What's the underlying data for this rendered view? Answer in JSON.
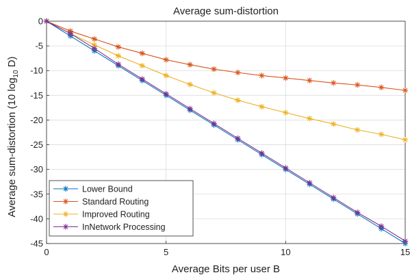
{
  "chart_data": {
    "type": "line",
    "title": "Average sum-distortion",
    "xlabel": "Average Bits per user B",
    "ylabel_main": "Average sum-distortion (10 log",
    "ylabel_sub": "10",
    "ylabel_tail": " D)",
    "xlim": [
      0,
      15
    ],
    "ylim": [
      -45,
      0
    ],
    "xticks": [
      0,
      5,
      10,
      15
    ],
    "yticks": [
      0,
      -5,
      -10,
      -15,
      -20,
      -25,
      -30,
      -35,
      -40,
      -45
    ],
    "grid": true,
    "legend_position": "bottom-left",
    "x": [
      0,
      1,
      2,
      3,
      4,
      5,
      6,
      7,
      8,
      9,
      10,
      11,
      12,
      13,
      14,
      15
    ],
    "series": [
      {
        "name": "Lower Bound",
        "color": "#0072BD",
        "marker": "asterisk",
        "values": [
          0,
          -3,
          -6,
          -9,
          -12,
          -15,
          -18,
          -21,
          -24,
          -27,
          -30,
          -33,
          -36,
          -39,
          -42,
          -45
        ]
      },
      {
        "name": "Standard Routing",
        "color": "#D95319",
        "marker": "asterisk",
        "values": [
          0,
          -2.0,
          -3.6,
          -5.2,
          -6.5,
          -7.8,
          -8.8,
          -9.7,
          -10.4,
          -11.0,
          -11.5,
          -12.0,
          -12.5,
          -12.9,
          -13.4,
          -14.0
        ]
      },
      {
        "name": "Improved Routing",
        "color": "#EDB120",
        "marker": "asterisk",
        "values": [
          0,
          -2.5,
          -4.8,
          -7.0,
          -9.0,
          -11.0,
          -12.8,
          -14.5,
          -16.0,
          -17.3,
          -18.5,
          -19.7,
          -20.8,
          -22.0,
          -22.9,
          -24.0
        ]
      },
      {
        "name": "InNetwork Processing",
        "color": "#7E2F8E",
        "marker": "asterisk",
        "values": [
          0,
          -2.5,
          -5.5,
          -8.7,
          -11.7,
          -14.7,
          -17.7,
          -20.7,
          -23.7,
          -26.7,
          -29.7,
          -32.7,
          -35.7,
          -38.7,
          -41.5,
          -44.5
        ]
      }
    ]
  }
}
